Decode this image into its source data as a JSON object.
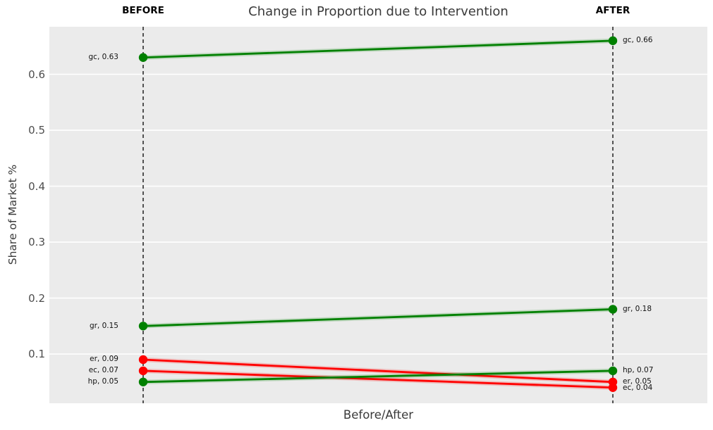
{
  "chart_data": {
    "type": "line",
    "subtype": "slopegraph",
    "title": "Change in Proportion due to Intervention",
    "xlabel": "Before/After",
    "ylabel": "Share of Market %",
    "column_headers": [
      "BEFORE",
      "AFTER"
    ],
    "categories": [
      "BEFORE",
      "AFTER"
    ],
    "ylim": [
      0.012,
      0.685
    ],
    "yticks": [
      0.1,
      0.2,
      0.3,
      0.4,
      0.5,
      0.6
    ],
    "grid": true,
    "legend": "none",
    "series": [
      {
        "name": "gc",
        "color": "#008000",
        "values": [
          0.63,
          0.66
        ],
        "labels": [
          "gc, 0.63",
          "gc, 0.66"
        ]
      },
      {
        "name": "gr",
        "color": "#008000",
        "values": [
          0.15,
          0.18
        ],
        "labels": [
          "gr, 0.15",
          "gr, 0.18"
        ]
      },
      {
        "name": "er",
        "color": "#ff0000",
        "values": [
          0.09,
          0.05
        ],
        "labels": [
          "er, 0.09",
          "er, 0.05"
        ]
      },
      {
        "name": "ec",
        "color": "#ff0000",
        "values": [
          0.07,
          0.04
        ],
        "labels": [
          "ec, 0.07",
          "ec, 0.04"
        ]
      },
      {
        "name": "hp",
        "color": "#008000",
        "values": [
          0.05,
          0.07
        ],
        "labels": [
          "hp, 0.05",
          "hp, 0.07"
        ]
      }
    ],
    "colors": {
      "increase": "#008000",
      "decrease": "#ff0000",
      "plot_background": "#ebebeb",
      "gridline": "#ffffff",
      "category_line": "#000000",
      "title_text": "#3a3a3a",
      "tick_text": "#4d4d4d",
      "point_label_text": "#111111"
    }
  }
}
